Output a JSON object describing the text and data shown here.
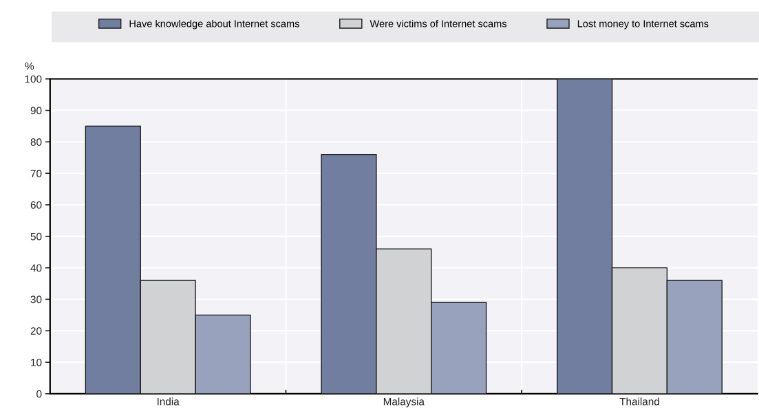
{
  "chart_data": {
    "type": "bar",
    "ylabel": "%",
    "categories": [
      "India",
      "Malaysia",
      "Thailand"
    ],
    "series": [
      {
        "name": "Have knowledge about Internet scams",
        "color": "#717ea0",
        "values": [
          85,
          76,
          100
        ]
      },
      {
        "name": "Were victims of Internet scams",
        "color": "#d1d2d4",
        "values": [
          36,
          46,
          40
        ]
      },
      {
        "name": "Lost money to Internet scams",
        "color": "#98a2bd",
        "values": [
          25,
          29,
          36
        ]
      }
    ],
    "ylim": [
      0,
      100
    ],
    "yticks": [
      0,
      10,
      20,
      30,
      40,
      50,
      60,
      70,
      80,
      90,
      100
    ],
    "grid": true,
    "legend": "top"
  }
}
